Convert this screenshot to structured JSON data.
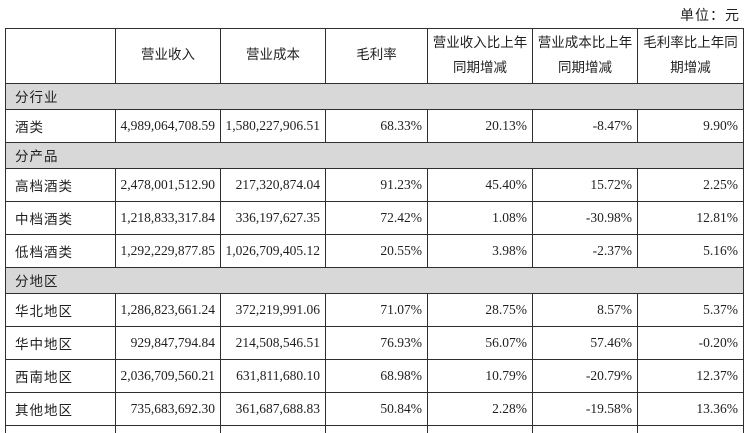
{
  "unit_label": "单位：元",
  "table": {
    "columns": [
      "",
      "营业收入",
      "营业成本",
      "毛利率",
      "营业收入比上年同期增减",
      "营业成本比上年同期增减",
      "毛利率比上年同期增减"
    ],
    "sections": [
      {
        "label": "分行业",
        "rows": [
          {
            "label": "酒类",
            "values": [
              "4,989,064,708.59",
              "1,580,227,906.51",
              "68.33%",
              "20.13%",
              "-8.47%",
              "9.90%"
            ]
          }
        ]
      },
      {
        "label": "分产品",
        "rows": [
          {
            "label": "高档酒类",
            "values": [
              "2,478,001,512.90",
              "217,320,874.04",
              "91.23%",
              "45.40%",
              "15.72%",
              "2.25%"
            ]
          },
          {
            "label": "中档酒类",
            "values": [
              "1,218,833,317.84",
              "336,197,627.35",
              "72.42%",
              "1.08%",
              "-30.98%",
              "12.81%"
            ]
          },
          {
            "label": "低档酒类",
            "values": [
              "1,292,229,877.85",
              "1,026,709,405.12",
              "20.55%",
              "3.98%",
              "-2.37%",
              "5.16%"
            ]
          }
        ]
      },
      {
        "label": "分地区",
        "rows": [
          {
            "label": "华北地区",
            "values": [
              "1,286,823,661.24",
              "372,219,991.06",
              "71.07%",
              "28.75%",
              "8.57%",
              "5.37%"
            ]
          },
          {
            "label": "华中地区",
            "values": [
              "929,847,794.84",
              "214,508,546.51",
              "76.93%",
              "56.07%",
              "57.46%",
              "-0.20%"
            ]
          },
          {
            "label": "西南地区",
            "values": [
              "2,036,709,560.21",
              "631,811,680.10",
              "68.98%",
              "10.79%",
              "-20.79%",
              "12.37%"
            ]
          },
          {
            "label": "其他地区",
            "values": [
              "735,683,692.30",
              "361,687,688.83",
              "50.84%",
              "2.28%",
              "-19.58%",
              "13.36%"
            ]
          }
        ]
      }
    ]
  },
  "colors": {
    "section_row_bg": "#d8d8d8",
    "border": "#2f2f2f",
    "text": "#1f1f1f",
    "background": "#ffffff"
  }
}
